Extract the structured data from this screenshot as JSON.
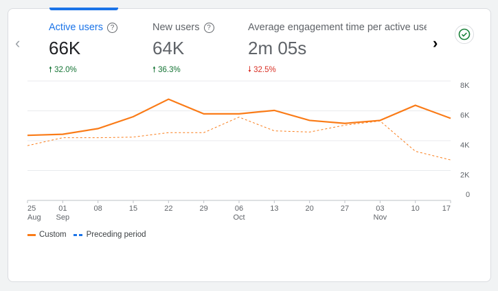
{
  "metrics": [
    {
      "label": "Active users",
      "value": "66K",
      "delta": "32.0%",
      "direction": "up",
      "selected": true
    },
    {
      "label": "New users",
      "value": "64K",
      "delta": "36.3%",
      "direction": "up",
      "selected": false
    },
    {
      "label": "Average engagement time per active user",
      "value": "2m 05s",
      "delta": "32.5%",
      "direction": "down",
      "selected": false
    }
  ],
  "icons": {
    "prev": "chevron-left-icon",
    "next": "chevron-right-icon",
    "status": "check-circle-icon",
    "help": "help-circle-icon"
  },
  "colors": {
    "accent": "#1a73e8",
    "series": "#fa7b17",
    "preceding_legend": "#1a73e8",
    "up": "#137333",
    "down": "#d93025"
  },
  "chart_data": {
    "type": "line",
    "categories": [
      "25 Aug",
      "01 Sep",
      "08",
      "15",
      "22",
      "29",
      "06 Oct",
      "13",
      "20",
      "27",
      "03 Nov",
      "10",
      "17"
    ],
    "tick_labels": [
      [
        "25",
        "Aug"
      ],
      [
        "01",
        "Sep"
      ],
      [
        "08",
        ""
      ],
      [
        "15",
        ""
      ],
      [
        "22",
        ""
      ],
      [
        "29",
        ""
      ],
      [
        "06",
        "Oct"
      ],
      [
        "13",
        ""
      ],
      [
        "20",
        ""
      ],
      [
        "27",
        ""
      ],
      [
        "03",
        "Nov"
      ],
      [
        "10",
        ""
      ],
      [
        "17",
        ""
      ]
    ],
    "yticks": [
      "0",
      "2K",
      "4K",
      "6K",
      "8K"
    ],
    "ylim": [
      0,
      8000
    ],
    "grid": true,
    "legend_position": "bottom-left",
    "series": [
      {
        "name": "Custom",
        "style": "solid",
        "values": [
          4360,
          4430,
          4810,
          5610,
          6780,
          5800,
          5800,
          6030,
          5360,
          5160,
          5360,
          6370,
          5500
        ]
      },
      {
        "name": "Preceding period",
        "style": "dashed",
        "values": [
          3670,
          4200,
          4200,
          4240,
          4540,
          4540,
          5580,
          4660,
          4580,
          5040,
          5320,
          3290,
          2710
        ]
      }
    ]
  }
}
